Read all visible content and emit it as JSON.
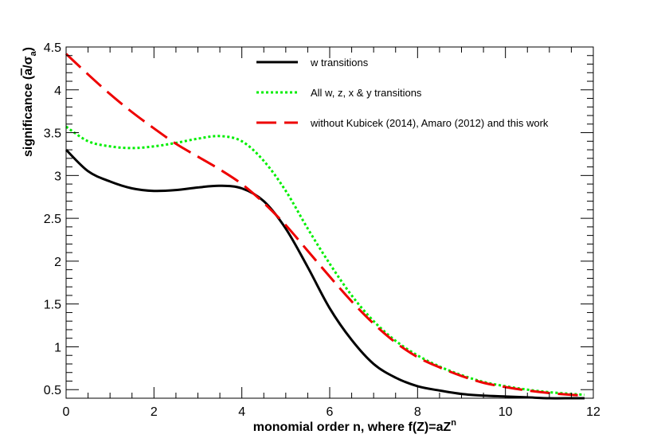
{
  "chart_data": {
    "type": "line",
    "title": "",
    "xlabel_main": "monomial order n, where f(Z)=aZ",
    "xlabel_sup": "n",
    "ylabel_prefix": "significance (",
    "ylabel_abar": "a",
    "ylabel_sep": "/σ",
    "ylabel_sub": "a",
    "ylabel_suffix": ")",
    "xlim": [
      0,
      12
    ],
    "ylim": [
      0.4,
      4.5
    ],
    "x_ticks": [
      0,
      2,
      4,
      6,
      8,
      10,
      12
    ],
    "x_tick_labels": [
      "0",
      "2",
      "4",
      "6",
      "8",
      "10",
      "12"
    ],
    "y_ticks": [
      0.5,
      1,
      1.5,
      2,
      2.5,
      3,
      3.5,
      4,
      4.5
    ],
    "y_tick_labels": [
      "0.5",
      "1",
      "1.5",
      "2",
      "2.5",
      "3",
      "3.5",
      "4",
      "4.5"
    ],
    "legend_position": "top-right",
    "series": [
      {
        "name": "w transitions",
        "color": "#000000",
        "style": "solid",
        "x": [
          0,
          0.5,
          1,
          1.5,
          2,
          2.5,
          3,
          3.5,
          4,
          4.5,
          5,
          5.5,
          6,
          6.5,
          7,
          7.5,
          8,
          8.5,
          9,
          9.5,
          10,
          10.5,
          11,
          11.5,
          11.8
        ],
        "y": [
          3.3,
          3.05,
          2.93,
          2.85,
          2.82,
          2.83,
          2.86,
          2.88,
          2.85,
          2.7,
          2.38,
          1.93,
          1.45,
          1.08,
          0.8,
          0.64,
          0.54,
          0.49,
          0.45,
          0.43,
          0.42,
          0.41,
          0.4,
          0.4,
          0.4
        ]
      },
      {
        "name": "All w, z, x & y transitions",
        "color": "#00ee00",
        "style": "dotted",
        "x": [
          0,
          0.5,
          1,
          1.5,
          2,
          2.5,
          3,
          3.5,
          4,
          4.5,
          5,
          5.5,
          6,
          6.5,
          7,
          7.5,
          8,
          8.5,
          9,
          9.5,
          10,
          10.5,
          11,
          11.5,
          11.8
        ],
        "y": [
          3.57,
          3.4,
          3.34,
          3.32,
          3.34,
          3.38,
          3.43,
          3.46,
          3.4,
          3.17,
          2.82,
          2.38,
          1.97,
          1.6,
          1.3,
          1.07,
          0.9,
          0.77,
          0.67,
          0.59,
          0.54,
          0.5,
          0.47,
          0.45,
          0.44
        ]
      },
      {
        "name": "without Kubicek (2014), Amaro (2012) and this work",
        "color": "#ee0000",
        "style": "dashed",
        "x": [
          0,
          0.5,
          1,
          1.5,
          2,
          2.5,
          3,
          3.5,
          4,
          4.5,
          5,
          5.5,
          6,
          6.5,
          7,
          7.5,
          8,
          8.5,
          9,
          9.5,
          10,
          10.5,
          11,
          11.5,
          11.8
        ],
        "y": [
          4.42,
          4.18,
          3.95,
          3.74,
          3.55,
          3.37,
          3.22,
          3.07,
          2.9,
          2.68,
          2.42,
          2.12,
          1.82,
          1.53,
          1.27,
          1.05,
          0.88,
          0.76,
          0.66,
          0.58,
          0.53,
          0.49,
          0.46,
          0.44,
          0.43
        ]
      }
    ]
  }
}
